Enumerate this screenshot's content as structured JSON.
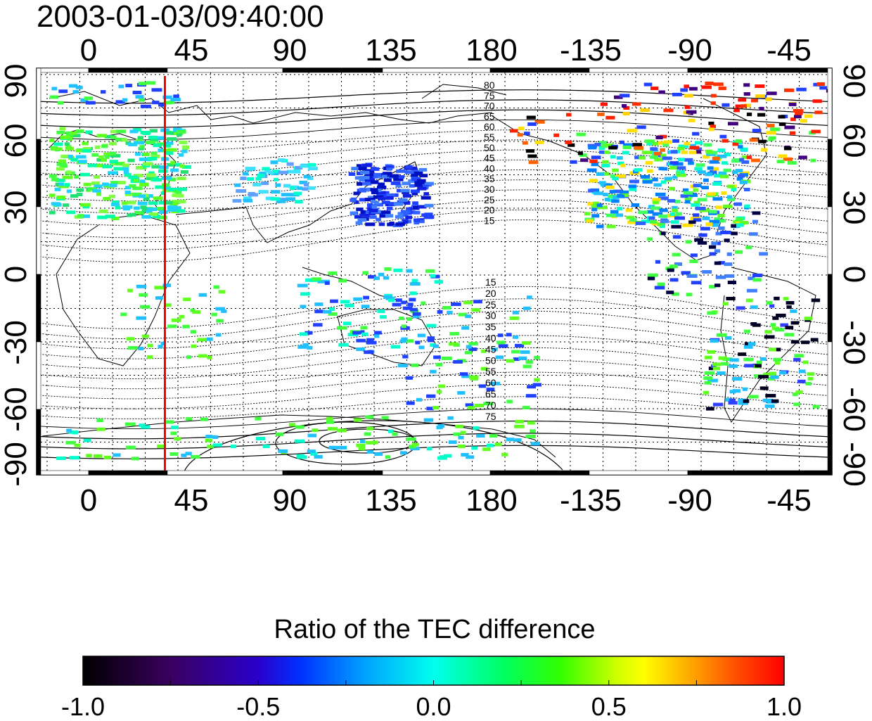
{
  "timestamp": "2003-01-03/09:40:00",
  "map": {
    "x_ticks": [
      "0",
      "45",
      "90",
      "135",
      "180",
      "-135",
      "-90",
      "-45"
    ],
    "y_ticks": [
      "90",
      "60",
      "30",
      "0",
      "-30",
      "-60",
      "-90"
    ],
    "red_meridian_longitude": 35,
    "contour_labels_north": [
      "80",
      "75",
      "70",
      "65",
      "60",
      "55",
      "50",
      "45",
      "40",
      "35",
      "30",
      "25",
      "20",
      "15"
    ],
    "contour_labels_south": [
      "15",
      "20",
      "25",
      "30",
      "35",
      "40",
      "45",
      "50",
      "55",
      "60",
      "65",
      "70",
      "75"
    ]
  },
  "colorbar": {
    "title": "Ratio of the TEC difference",
    "labels": [
      "-1.0",
      "-0.5",
      "0.0",
      "0.5",
      "1.0"
    ],
    "range": [
      -1.0,
      1.0
    ]
  },
  "colors": {
    "meridian": "#ff0000",
    "frame": "#000000",
    "background": "#ffffff"
  }
}
